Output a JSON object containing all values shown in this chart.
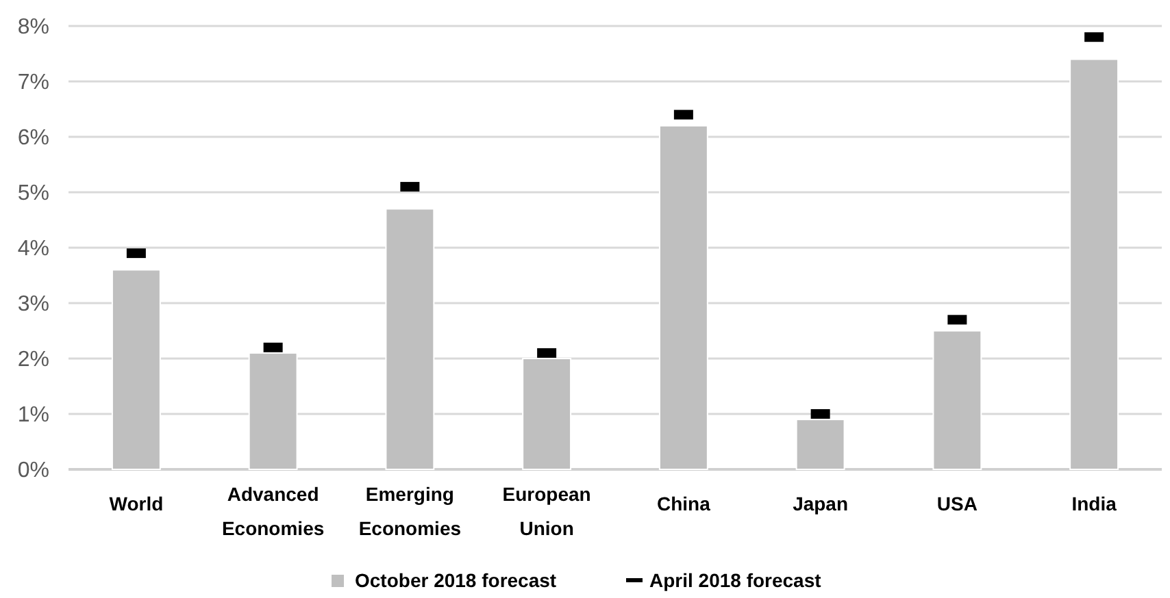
{
  "chart_data": {
    "type": "bar",
    "categories": [
      "World",
      "Advanced Economies",
      "Emerging Economies",
      "European Union",
      "China",
      "Japan",
      "USA",
      "India"
    ],
    "series": [
      {
        "name": "October 2018 forecast",
        "color": "#bfbfbf",
        "values": [
          3.6,
          2.1,
          4.7,
          2.0,
          6.2,
          0.9,
          2.5,
          7.4
        ]
      },
      {
        "name": "April 2018 forecast",
        "type": "scatter",
        "x": [
          "World",
          "Advanced Economies",
          "Emerging Economies",
          "European Union",
          "China",
          "Japan",
          "USA",
          "India"
        ],
        "color": "#000000",
        "values": [
          3.9,
          2.2,
          5.1,
          2.1,
          6.4,
          1.0,
          2.7,
          7.8
        ]
      }
    ],
    "ylim": [
      0,
      8
    ],
    "yticks": [
      {
        "value": 0,
        "label": "0%"
      },
      {
        "value": 1,
        "label": "1%"
      },
      {
        "value": 2,
        "label": "2%"
      },
      {
        "value": 3,
        "label": "3%"
      },
      {
        "value": 4,
        "label": "4%"
      },
      {
        "value": 5,
        "label": "5%"
      },
      {
        "value": 6,
        "label": "6%"
      },
      {
        "value": 7,
        "label": "7%"
      },
      {
        "value": 8,
        "label": "8%"
      }
    ],
    "grid": "y",
    "legend": "bottom"
  }
}
